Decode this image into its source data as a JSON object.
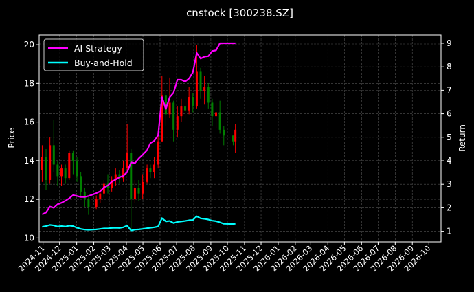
{
  "chart_data": {
    "type": "line",
    "title": "cnstock [300238.SZ]",
    "ylabel": "Price",
    "y2label": "Return",
    "ylim": [
      9.8,
      20.5
    ],
    "y2lim": [
      0.55,
      9.35
    ],
    "xlim": [
      "2024-10-25",
      "2026-10-23"
    ],
    "yticks": [
      10,
      12,
      14,
      16,
      18,
      20
    ],
    "y2ticks": [
      1,
      2,
      3,
      4,
      5,
      6,
      7,
      8,
      9
    ],
    "xticks": [
      "2024-11",
      "2024-12",
      "2025-01",
      "2025-02",
      "2025-03",
      "2025-04",
      "2025-05",
      "2025-06",
      "2025-07",
      "2025-08",
      "2025-09",
      "2025-10",
      "2025-11",
      "2025-12",
      "2026-01",
      "2026-02",
      "2026-03",
      "2026-04",
      "2026-05",
      "2026-06",
      "2026-07",
      "2026-08",
      "2026-09",
      "2026-10"
    ],
    "grid": true,
    "legend_placement": "top-left",
    "colors": {
      "up": "#ff0000",
      "down": "#008000",
      "strategy": "#ff00ff",
      "buyhold": "#00ffff",
      "background": "#000000"
    },
    "candles": {
      "dates": [
        "2024-10-28",
        "2024-11-04",
        "2024-11-11",
        "2024-11-18",
        "2024-11-25",
        "2024-12-02",
        "2024-12-09",
        "2024-12-16",
        "2024-12-23",
        "2024-12-30",
        "2025-01-06",
        "2025-01-13",
        "2025-01-20",
        "2025-02-03",
        "2025-02-10",
        "2025-02-17",
        "2025-02-24",
        "2025-03-03",
        "2025-03-10",
        "2025-03-17",
        "2025-03-24",
        "2025-03-31",
        "2025-04-07",
        "2025-04-14",
        "2025-04-21",
        "2025-04-28",
        "2025-05-06",
        "2025-05-12",
        "2025-05-19",
        "2025-05-26",
        "2025-06-02",
        "2025-06-09",
        "2025-06-16",
        "2025-06-23",
        "2025-06-30",
        "2025-07-07",
        "2025-07-14",
        "2025-07-21",
        "2025-07-28",
        "2025-08-04",
        "2025-08-11",
        "2025-08-18",
        "2025-08-25",
        "2025-09-01",
        "2025-09-08",
        "2025-09-15",
        "2025-09-22",
        "2025-10-09",
        "2025-10-13"
      ],
      "ohlc": [
        [
          13.5,
          14.8,
          12.9,
          14.2
        ],
        [
          14.2,
          14.6,
          12.5,
          13.0
        ],
        [
          13.0,
          15.2,
          12.8,
          14.8
        ],
        [
          14.8,
          16.1,
          13.4,
          13.8
        ],
        [
          13.8,
          14.0,
          12.7,
          13.2
        ],
        [
          13.2,
          13.8,
          12.7,
          13.6
        ],
        [
          13.6,
          13.8,
          12.8,
          13.1
        ],
        [
          13.1,
          14.5,
          13.0,
          14.4
        ],
        [
          14.4,
          14.5,
          13.3,
          14.0
        ],
        [
          14.0,
          14.2,
          12.9,
          13.2
        ],
        [
          13.2,
          13.4,
          12.1,
          12.4
        ],
        [
          12.4,
          12.6,
          11.6,
          12.0
        ],
        [
          12.0,
          12.1,
          11.2,
          11.6
        ],
        [
          11.6,
          12.2,
          11.5,
          12.0
        ],
        [
          12.0,
          12.6,
          11.8,
          12.3
        ],
        [
          12.3,
          13.0,
          12.1,
          12.8
        ],
        [
          12.8,
          13.3,
          12.3,
          12.6
        ],
        [
          12.6,
          13.2,
          12.4,
          13.0
        ],
        [
          13.0,
          13.6,
          12.7,
          13.3
        ],
        [
          13.3,
          13.5,
          12.8,
          13.1
        ],
        [
          13.1,
          14.0,
          12.9,
          13.6
        ],
        [
          13.6,
          15.9,
          13.5,
          14.4
        ],
        [
          14.4,
          14.6,
          10.4,
          12.0
        ],
        [
          12.0,
          13.0,
          11.8,
          12.6
        ],
        [
          12.6,
          13.0,
          11.9,
          12.3
        ],
        [
          12.3,
          13.3,
          12.0,
          12.9
        ],
        [
          12.9,
          13.8,
          12.8,
          13.6
        ],
        [
          13.6,
          13.8,
          13.1,
          13.4
        ],
        [
          13.4,
          14.2,
          13.1,
          13.8
        ],
        [
          13.8,
          15.5,
          13.6,
          15.0
        ],
        [
          15.0,
          18.4,
          15.0,
          17.4
        ],
        [
          17.4,
          17.6,
          15.8,
          16.4
        ],
        [
          16.4,
          18.3,
          16.2,
          17.0
        ],
        [
          17.0,
          17.1,
          15.0,
          15.6
        ],
        [
          15.6,
          16.8,
          15.2,
          16.3
        ],
        [
          16.3,
          17.2,
          16.0,
          16.8
        ],
        [
          16.8,
          17.3,
          16.2,
          16.6
        ],
        [
          16.6,
          17.8,
          16.4,
          17.3
        ],
        [
          17.3,
          17.5,
          16.5,
          16.8
        ],
        [
          16.8,
          20.0,
          16.7,
          18.6
        ],
        [
          18.6,
          18.8,
          17.2,
          17.6
        ],
        [
          17.6,
          18.4,
          16.9,
          17.8
        ],
        [
          17.8,
          18.0,
          16.7,
          17.0
        ],
        [
          17.0,
          17.2,
          15.8,
          16.3
        ],
        [
          16.3,
          17.0,
          15.7,
          16.5
        ],
        [
          16.5,
          17.1,
          15.4,
          15.6
        ],
        [
          15.6,
          15.8,
          14.8,
          15.3
        ],
        [
          15.3,
          15.3,
          14.8,
          15.0
        ],
        [
          15.0,
          15.9,
          14.4,
          15.6
        ]
      ]
    },
    "series": [
      {
        "name": "AI Strategy",
        "axis": "right",
        "values": [
          1.72,
          1.8,
          2.05,
          2.0,
          2.15,
          2.21,
          2.3,
          2.4,
          2.54,
          2.5,
          2.46,
          2.46,
          2.5,
          2.62,
          2.7,
          2.87,
          2.95,
          3.11,
          3.2,
          3.3,
          3.36,
          3.52,
          3.93,
          3.9,
          4.1,
          4.26,
          4.45,
          4.75,
          4.85,
          5.08,
          6.71,
          6.2,
          6.71,
          6.9,
          7.45,
          7.45,
          7.37,
          7.5,
          7.77,
          8.59,
          8.35,
          8.43,
          8.45,
          8.67,
          8.7,
          9.0,
          9.0,
          9.0,
          9.0
        ]
      },
      {
        "name": "Buy-and-Hold",
        "axis": "right",
        "values": [
          1.19,
          1.22,
          1.27,
          1.25,
          1.2,
          1.22,
          1.2,
          1.24,
          1.22,
          1.15,
          1.1,
          1.07,
          1.06,
          1.08,
          1.1,
          1.12,
          1.12,
          1.14,
          1.15,
          1.14,
          1.17,
          1.24,
          1.03,
          1.07,
          1.08,
          1.1,
          1.13,
          1.15,
          1.17,
          1.2,
          1.56,
          1.42,
          1.44,
          1.35,
          1.4,
          1.42,
          1.44,
          1.47,
          1.48,
          1.64,
          1.55,
          1.53,
          1.5,
          1.45,
          1.43,
          1.38,
          1.32,
          1.31,
          1.32
        ]
      }
    ]
  }
}
